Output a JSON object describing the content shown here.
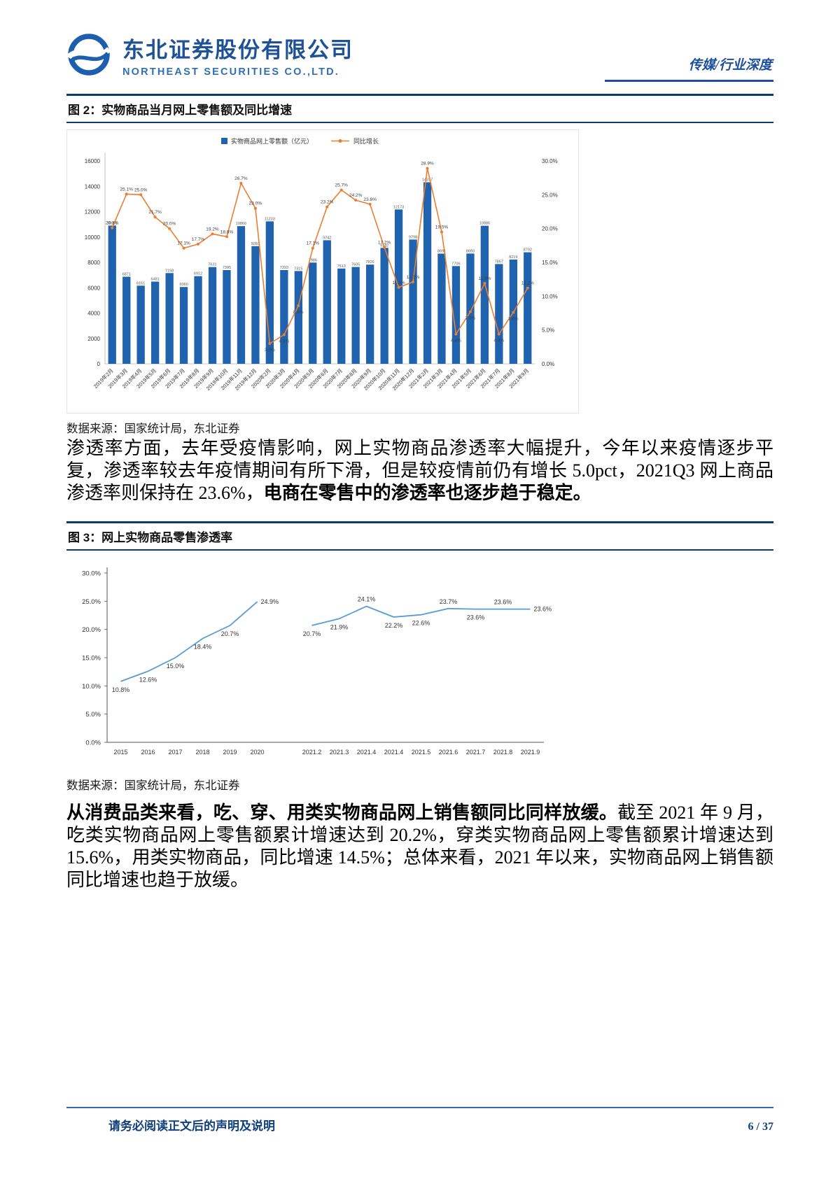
{
  "header": {
    "company_cn": "东北证券股份有限公司",
    "company_en": "NORTHEAST SECURITIES CO.,LTD.",
    "report_tag": "传媒/行业深度"
  },
  "figure2": {
    "title": "图 2：实物商品当月网上零售额及同比增速",
    "source": "数据来源：国家统计局，东北证券"
  },
  "paragraph1": {
    "normal": "渗透率方面，去年受疫情影响，网上实物商品渗透率大幅提升，今年以来疫情逐步平复，渗透率较去年疫情期间有所下滑，但是较疫情前仍有增长 5.0pct，2021Q3 网上商品渗透率则保持在 23.6%，",
    "bold": "电商在零售中的渗透率也逐步趋于稳定。"
  },
  "figure3": {
    "title": "图 3：网上实物商品零售渗透率",
    "source": "数据来源：国家统计局，东北证券"
  },
  "paragraph2": {
    "bold": "从消费品类来看，吃、穿、用类实物商品网上销售额同比同样放缓。",
    "normal": "截至 2021 年 9 月，吃类实物商品网上零售额累计增速达到 20.2%，穿类实物商品网上零售额累计增速达到 15.6%，用类实物商品，同比增速 14.5%；总体来看，2021 年以来，实物商品网上销售额同比增速也趋于放缓。"
  },
  "footer": {
    "disclaimer": "请务必阅读正文后的声明及说明",
    "page_number": "6 / 37"
  },
  "chart_data": [
    {
      "type": "bar",
      "subtype": "bar+line-combo",
      "title": "实物商品当月网上零售额及同比增速",
      "legend": [
        {
          "label": "实物商品网上零售额（亿元）",
          "color": "#1f62ae",
          "marker": "bar"
        },
        {
          "label": "同比增长",
          "color": "#ed7d31",
          "marker": "line"
        }
      ],
      "categories": [
        "2019年2月",
        "2019年3月",
        "2019年4月",
        "2019年5月",
        "2019年6月",
        "2019年7月",
        "2019年8月",
        "2019年9月",
        "2019年10月",
        "2019年11月",
        "2019年12月",
        "2020年2月",
        "2020年3月",
        "2020年4月",
        "2020年5月",
        "2020年6月",
        "2020年7月",
        "2020年8月",
        "2020年9月",
        "2020年10月",
        "2020年11月",
        "2020年12月",
        "2021年2月",
        "2021年3月",
        "2021年4月",
        "2021年5月",
        "2021年6月",
        "2021年7月",
        "2021年8月",
        "2021年9月"
      ],
      "bar_series": {
        "name": "实物商品网上零售额（亿元）",
        "values": [
          10901,
          6871,
          6161,
          6481,
          7158,
          6060,
          6912,
          7631,
          7395,
          10860,
          9281,
          11233,
          7393,
          7315,
          7986,
          9742,
          7513,
          7635,
          7826,
          9142,
          12173,
          9798,
          14317,
          8691,
          7706,
          8693,
          10886,
          7867,
          8219,
          8792
        ]
      },
      "line_series": {
        "name": "同比增长",
        "values": [
          20.1,
          25.1,
          25.0,
          21.7,
          20.0,
          17.1,
          17.7,
          19.2,
          18.8,
          26.7,
          23.0,
          3.0,
          4.3,
          8.6,
          17.1,
          23.2,
          25.7,
          24.2,
          23.6,
          17.2,
          11.3,
          12.1,
          28.9,
          19.5,
          4.4,
          7.7,
          11.9,
          4.4,
          7.6,
          11.2
        ]
      },
      "left_axis": {
        "min": 0,
        "max": 16000,
        "step": 2000
      },
      "right_axis": {
        "min": 0,
        "max": 30,
        "step": 5,
        "unit": "%"
      },
      "bar_color": "#1f62ae",
      "line_color": "#ed7d31",
      "grid": false,
      "legend_position": "top"
    },
    {
      "type": "line",
      "title": "网上实物商品零售渗透率",
      "categories": [
        "2015",
        "2016",
        "2017",
        "2018",
        "2019",
        "2020",
        "",
        "2021.2",
        "2021.3",
        "2021.4",
        "2021.4",
        "2021.5",
        "2021.6",
        "2021.7",
        "2021.8",
        "2021.9"
      ],
      "segments": [
        {
          "x": [
            0,
            1,
            2,
            3,
            4,
            5
          ],
          "values": [
            10.8,
            12.6,
            15.0,
            18.4,
            20.7,
            24.9
          ]
        },
        {
          "x": [
            7,
            8,
            9,
            10,
            11,
            12,
            13,
            14,
            15
          ],
          "values": [
            20.7,
            21.9,
            24.1,
            22.2,
            22.6,
            23.7,
            23.6,
            23.6,
            23.6
          ]
        }
      ],
      "y_axis": {
        "min": 0,
        "max": 30,
        "step": 5,
        "unit": "%"
      },
      "line_color": "#5b9bd5",
      "grid": false,
      "legend_position": "none"
    }
  ]
}
